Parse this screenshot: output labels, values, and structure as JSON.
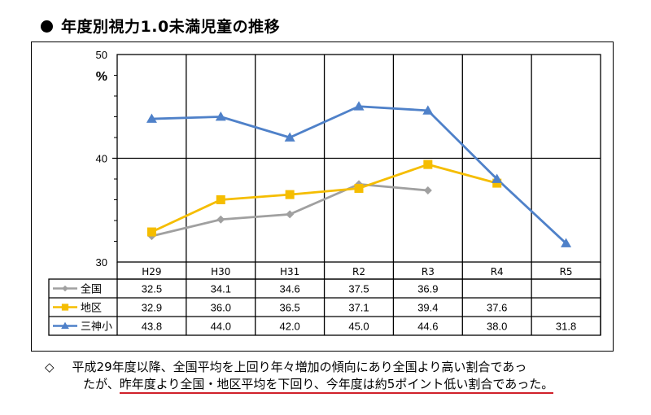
{
  "title": "年度別視力1.0未満児童の推移",
  "chart_data": {
    "type": "line",
    "title": "年度別視力1.0未満児童の推移",
    "ylabel": "%",
    "xlabel": "",
    "ylim": [
      30,
      50
    ],
    "yticks": [
      30,
      40,
      50
    ],
    "minor_tick_step": 2,
    "grid": true,
    "legend": "data-table-left",
    "categories": [
      "H29",
      "H30",
      "H31",
      "R2",
      "R3",
      "R4",
      "R5"
    ],
    "series": [
      {
        "name": "全国",
        "color": "#a0a0a0",
        "marker": "diamond",
        "values": [
          32.5,
          34.1,
          34.6,
          37.5,
          36.9,
          null,
          null
        ],
        "labels": [
          "32.5",
          "34.1",
          "34.6",
          "37.5",
          "36.9",
          "",
          ""
        ]
      },
      {
        "name": "地区",
        "color": "#f5bd00",
        "marker": "square",
        "values": [
          32.9,
          36.0,
          36.5,
          37.1,
          39.4,
          37.6,
          null
        ],
        "labels": [
          "32.9",
          "36.0",
          "36.5",
          "37.1",
          "39.4",
          "37.6",
          ""
        ]
      },
      {
        "name": "三神小",
        "color": "#4f81c9",
        "marker": "triangle",
        "values": [
          43.8,
          44.0,
          42.0,
          45.0,
          44.6,
          38.0,
          31.8
        ],
        "labels": [
          "43.8",
          "44.0",
          "42.0",
          "45.0",
          "44.6",
          "38.0",
          "31.8"
        ]
      }
    ]
  },
  "note": {
    "marker": "◇",
    "line1": "平成29年度以降、全国平均を上回り年々増加の傾向にあり全国より高い割合であっ",
    "line2_prefix": "たが、",
    "line2_underlined": "昨年度より全国・地区平均を下回り、今年度は約5ポイント低い割合であった。",
    "underline_color": "#d0202a"
  }
}
